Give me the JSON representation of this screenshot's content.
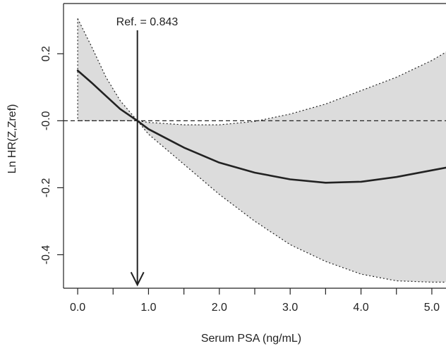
{
  "chart_data": {
    "type": "line",
    "title": "",
    "xlabel": "Serum PSA (ng/mL)",
    "ylabel": "Ln HR(Z,Zref)",
    "xlim": [
      -0.2,
      5.2
    ],
    "ylim": [
      -0.5,
      0.35
    ],
    "x_ticks": [
      {
        "value": 0.0,
        "label": "0.0"
      },
      {
        "value": 1.0,
        "label": "1.0"
      },
      {
        "value": 2.0,
        "label": "2.0"
      },
      {
        "value": 3.0,
        "label": "3.0"
      },
      {
        "value": 4.0,
        "label": "4.0"
      },
      {
        "value": 5.0,
        "label": "5.0"
      }
    ],
    "x_minor_ticks": [
      0.5,
      1.5,
      2.5,
      3.5,
      4.5
    ],
    "y_ticks": [
      {
        "value": 0.2,
        "label": "0.2"
      },
      {
        "value": 0.0,
        "label": "-0.0"
      },
      {
        "value": -0.2,
        "label": "-0.2"
      },
      {
        "value": -0.4,
        "label": "-0.4"
      }
    ],
    "grid": false,
    "reference_line": {
      "y": 0
    },
    "annotation": {
      "text": "Ref. = 0.843",
      "x": 0.843
    },
    "series": [
      {
        "role": "estimate",
        "color": "#222222",
        "x": [
          0.0,
          0.2,
          0.4,
          0.6,
          0.843,
          1.0,
          1.5,
          2.0,
          2.5,
          3.0,
          3.5,
          4.0,
          4.5,
          5.0,
          5.2
        ],
        "y": [
          0.15,
          0.113,
          0.074,
          0.035,
          0.0,
          -0.025,
          -0.08,
          -0.125,
          -0.155,
          -0.175,
          -0.185,
          -0.182,
          -0.168,
          -0.148,
          -0.14
        ]
      },
      {
        "role": "upper-bound",
        "color": "#222222",
        "x": [
          0.0,
          0.2,
          0.4,
          0.6,
          0.843,
          1.0,
          1.5,
          2.0,
          2.5,
          3.0,
          3.5,
          4.0,
          4.5,
          5.0,
          5.2
        ],
        "y": [
          0.305,
          0.22,
          0.13,
          0.06,
          0.0,
          -0.005,
          -0.012,
          -0.012,
          -0.002,
          0.02,
          0.05,
          0.09,
          0.13,
          0.18,
          0.205
        ]
      },
      {
        "role": "lower-bound",
        "color": "#222222",
        "x": [
          0.0,
          0.2,
          0.4,
          0.6,
          0.843,
          1.0,
          1.5,
          2.0,
          2.5,
          3.0,
          3.5,
          4.0,
          4.5,
          5.0,
          5.2
        ],
        "y": [
          0.0,
          0.0,
          0.0,
          0.0,
          0.0,
          -0.04,
          -0.13,
          -0.22,
          -0.3,
          -0.37,
          -0.42,
          -0.458,
          -0.478,
          -0.482,
          -0.482
        ]
      }
    ],
    "band_fill": "#dcdcdc"
  }
}
